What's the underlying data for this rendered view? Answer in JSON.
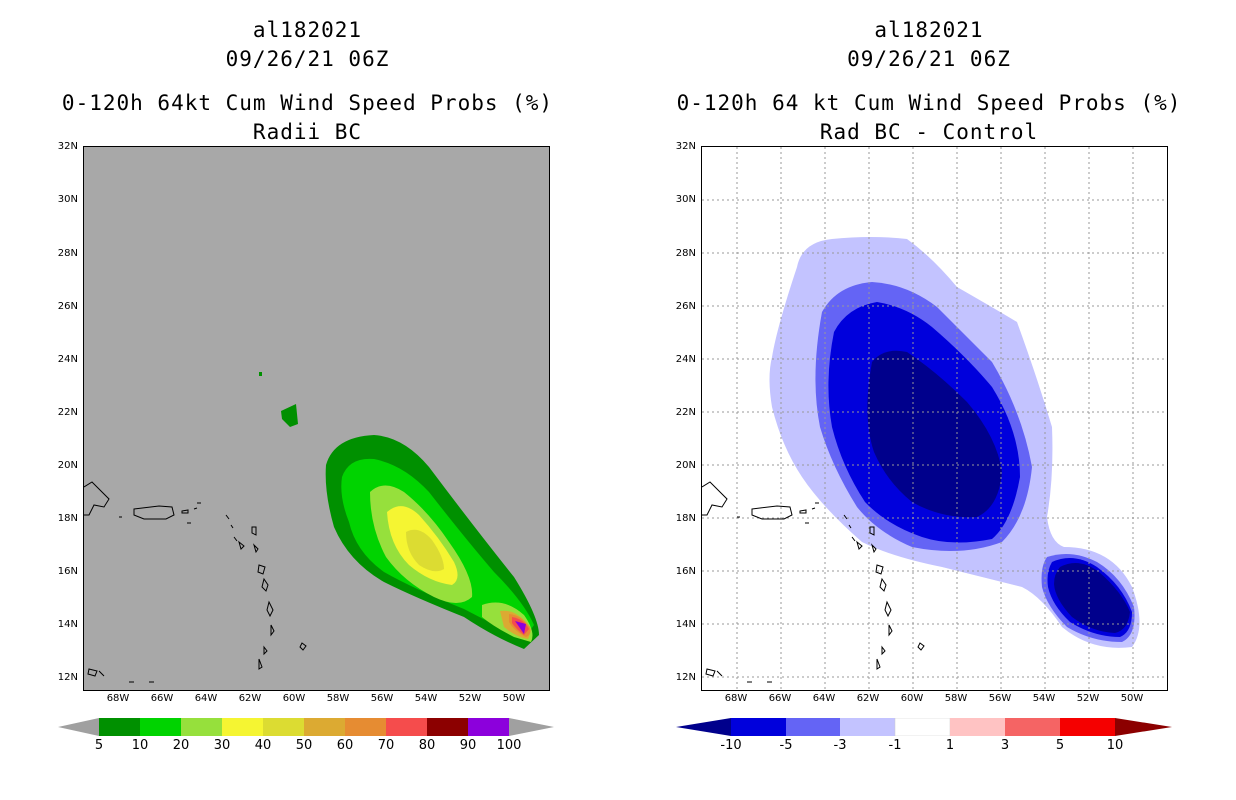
{
  "left_panel": {
    "storm_id": "al182021",
    "datetime": "09/26/21 06Z",
    "product": "0-120h 64kt Cum Wind Speed Probs (%)",
    "subtitle": "Radii BC",
    "colorbar": {
      "labels": [
        "5",
        "10",
        "20",
        "30",
        "40",
        "50",
        "60",
        "70",
        "80",
        "90",
        "100"
      ],
      "colors": [
        "#009000",
        "#00d300",
        "#96e03c",
        "#f5f532",
        "#dcdc32",
        "#dcaa32",
        "#e68c32",
        "#f54c4c",
        "#8c0000",
        "#8c00dc"
      ],
      "arrow_left": "#a0a0a0",
      "arrow_right": "#a0a0a0"
    },
    "map_background": "#a8a8a8"
  },
  "right_panel": {
    "storm_id": "al182021",
    "datetime": "09/26/21 06Z",
    "product": "0-120h 64 kt Cum Wind Speed Probs (%)",
    "subtitle": "Rad BC - Control",
    "colorbar": {
      "labels": [
        "-10",
        "-5",
        "-3",
        "-1",
        "1",
        "3",
        "5",
        "10"
      ],
      "colors": [
        "#0000dc",
        "#6464f5",
        "#c3c3ff",
        "#ffffff",
        "#ffc3c3",
        "#f56464",
        "#f50000"
      ],
      "arrow_left": "#00008c",
      "arrow_right": "#8c0000"
    },
    "map_background": "#ffffff"
  },
  "axes": {
    "lat_labels": [
      "32N",
      "30N",
      "28N",
      "26N",
      "24N",
      "22N",
      "20N",
      "18N",
      "16N",
      "14N",
      "12N"
    ],
    "lon_labels": [
      "68W",
      "66W",
      "64W",
      "62W",
      "60W",
      "58W",
      "56W",
      "54W",
      "52W",
      "50W"
    ]
  }
}
